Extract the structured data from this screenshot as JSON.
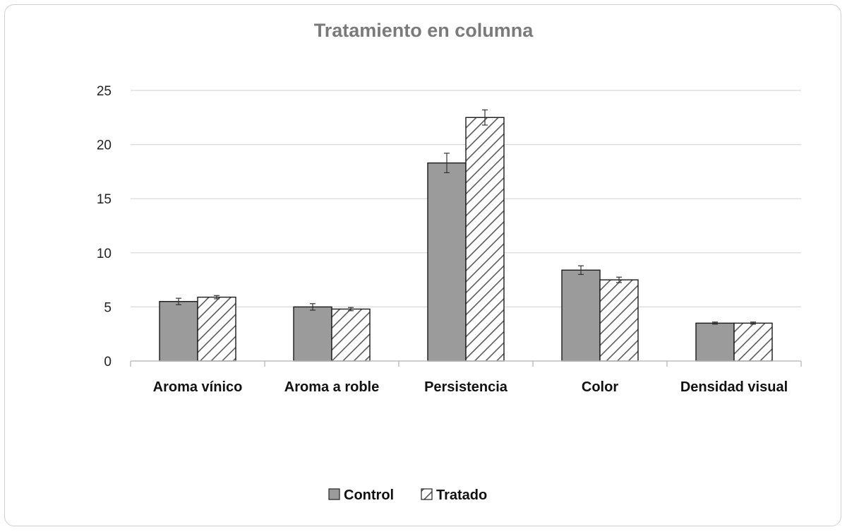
{
  "chart_data": {
    "type": "bar",
    "title": "Tratamiento en columna",
    "xlabel": "",
    "ylabel": "",
    "categories": [
      "Aroma vínico",
      "Aroma a roble",
      "Persistencia",
      "Color",
      "Densidad visual"
    ],
    "series": [
      {
        "name": "Control",
        "values": [
          5.5,
          5.0,
          18.3,
          8.4,
          3.5
        ],
        "errors": [
          0.3,
          0.3,
          0.9,
          0.4,
          0.1
        ],
        "fill": "#9b9b9b",
        "pattern": "solid"
      },
      {
        "name": "Tratado",
        "values": [
          5.9,
          4.8,
          22.5,
          7.5,
          3.5
        ],
        "errors": [
          0.15,
          0.15,
          0.7,
          0.25,
          0.1
        ],
        "fill": "#ffffff",
        "pattern": "diagonal-hatch"
      }
    ],
    "ylim": [
      0,
      25
    ],
    "yticks": [
      0,
      5,
      10,
      15,
      20,
      25
    ],
    "grid": true,
    "legend_position": "bottom"
  }
}
